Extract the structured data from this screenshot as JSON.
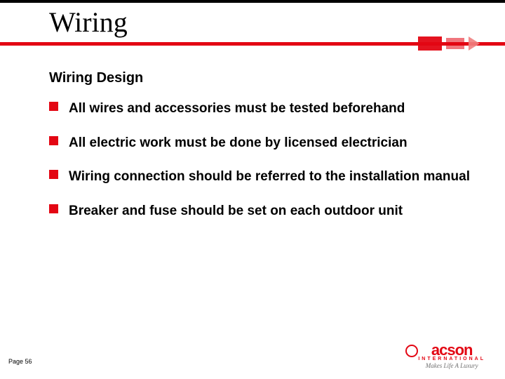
{
  "colors": {
    "accent": "#e30613",
    "text": "#000000",
    "bg": "#ffffff",
    "logo_tag": "#707070"
  },
  "header": {
    "title": "Wiring"
  },
  "content": {
    "subtitle": "Wiring Design",
    "bullets": [
      "All wires and accessories must be tested beforehand",
      "All electric work must be done by licensed electrician",
      "Wiring connection should be referred to the installation manual",
      "Breaker and fuse should be set on each outdoor unit"
    ]
  },
  "footer": {
    "page_label": "Page 56",
    "logo_main": "acson",
    "logo_intl": "INTERNATIONAL",
    "logo_tagline": "Makes Life A Luxury"
  }
}
